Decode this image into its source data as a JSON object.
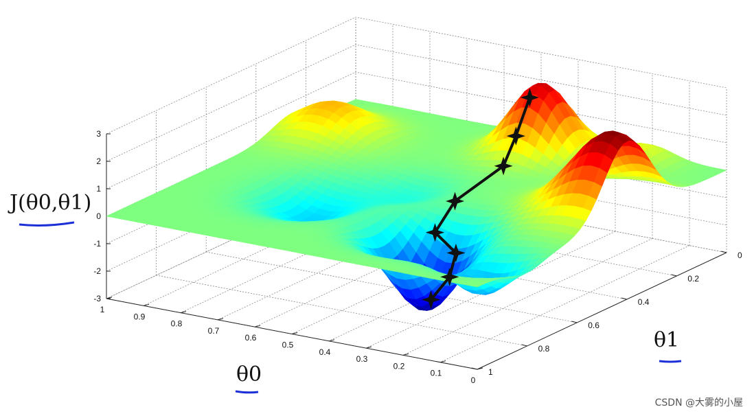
{
  "chart_data": {
    "type": "surface",
    "zlabel": "J(θ0,θ1)",
    "xlabel": "θ0",
    "ylabel": "θ1",
    "z_ticks": [
      "3",
      "2",
      "1",
      "0",
      "-1",
      "-2",
      "-3"
    ],
    "x_ticks": [
      "1",
      "0.9",
      "0.8",
      "0.7",
      "0.6",
      "0.5",
      "0.4",
      "0.3",
      "0.2",
      "0.1",
      "0"
    ],
    "y_ticks": [
      "0",
      "0.2",
      "0.4",
      "0.6",
      "0.8",
      "1"
    ],
    "xlim": [
      0,
      1
    ],
    "ylim": [
      0,
      1
    ],
    "zlim": [
      -3,
      3
    ],
    "grid": true,
    "colormap": "jet",
    "descent_path": [
      {
        "theta0": 0.45,
        "theta1": 0.12,
        "J": 2.0
      },
      {
        "theta0": 0.42,
        "theta1": 0.22,
        "J": 1.1
      },
      {
        "theta0": 0.4,
        "theta1": 0.3,
        "J": 0.4
      },
      {
        "theta0": 0.45,
        "theta1": 0.42,
        "J": -0.5
      },
      {
        "theta0": 0.45,
        "theta1": 0.5,
        "J": -1.3
      },
      {
        "theta0": 0.36,
        "theta1": 0.55,
        "J": -1.6
      },
      {
        "theta0": 0.33,
        "theta1": 0.62,
        "J": -2.1
      },
      {
        "theta0": 0.34,
        "theta1": 0.68,
        "J": -2.7
      }
    ],
    "path_color": "#111111",
    "underline_color": "#1a2fd6"
  },
  "watermark": "CSDN @大雾的小屋"
}
